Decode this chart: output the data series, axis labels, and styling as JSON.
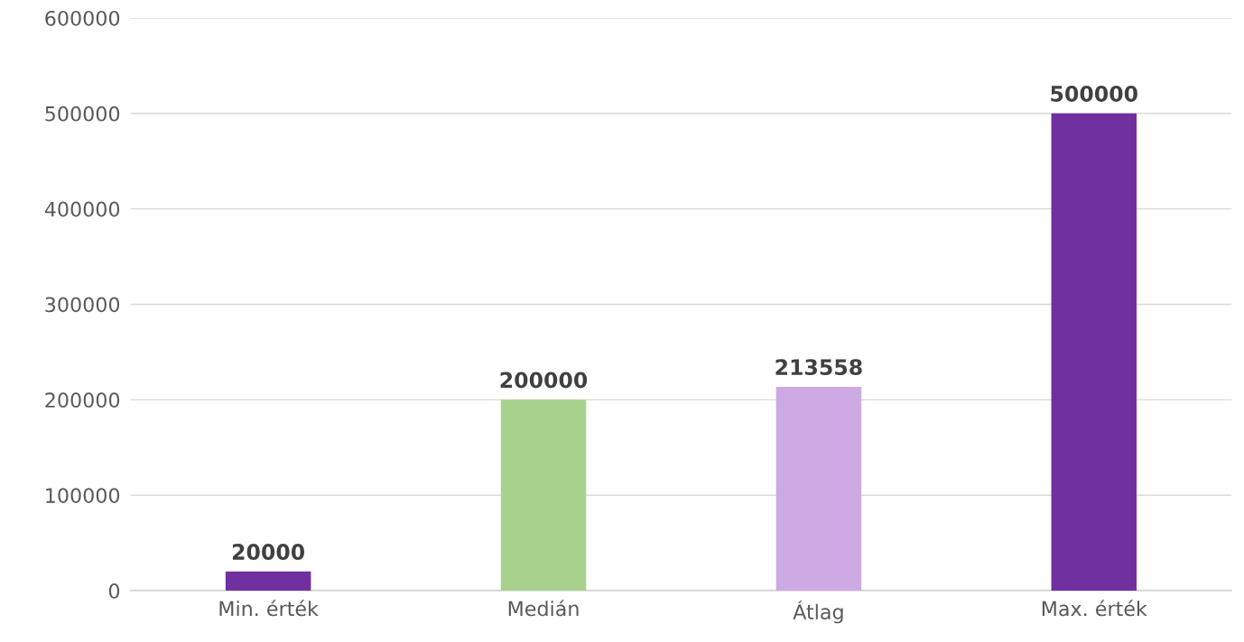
{
  "chart_data": {
    "type": "bar",
    "categories": [
      "Min. érték",
      "Medián",
      "Átlag",
      "Max. érték"
    ],
    "values": [
      20000,
      200000,
      213558,
      500000
    ],
    "colors": [
      "#7030a0",
      "#a9d18e",
      "#cdaae4",
      "#7030a0"
    ],
    "ylim": [
      0,
      600000
    ],
    "yticks": [
      0,
      100000,
      200000,
      300000,
      400000,
      500000,
      600000
    ],
    "grid": "y",
    "legend": false,
    "data_labels": true
  }
}
